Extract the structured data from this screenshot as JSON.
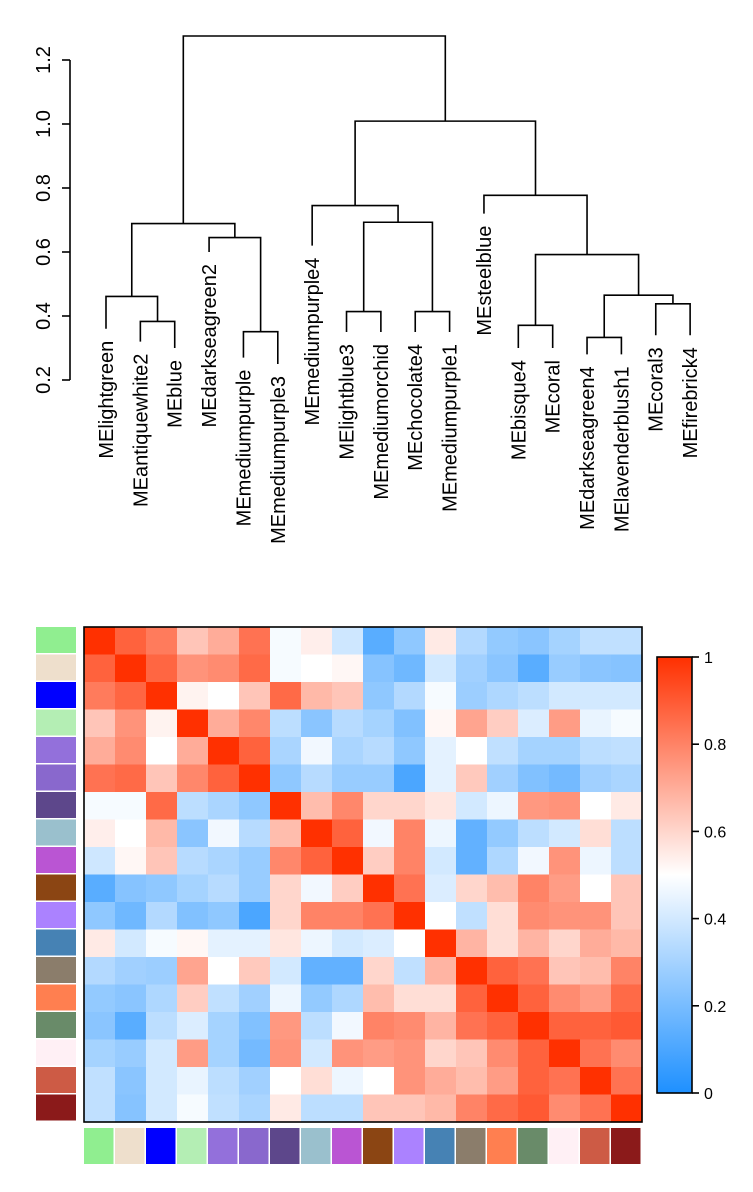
{
  "chart_data": [
    {
      "type": "dendrogram",
      "ylim": [
        0.2,
        1.3
      ],
      "yticks": [
        "0.2",
        "0.4",
        "0.6",
        "0.8",
        "1.0",
        "1.2"
      ],
      "ytick_values": [
        0.2,
        0.4,
        0.6,
        0.8,
        1.0,
        1.2
      ],
      "leaves": [
        "MElightgreen",
        "MEantiquewhite2",
        "MEblue",
        "MEdarkseagreen2",
        "MEmediumpurple",
        "MEmediumpurple3",
        "MEmediumpurple4",
        "MElightblue3",
        "MEmediumorchid",
        "MEchocolate4",
        "MEmediumpurple1",
        "MEsteelblue",
        "MEbisque4",
        "MEcoral",
        "MEdarkseagreen4",
        "MElavenderblush1",
        "MEcoral3",
        "MEfirebrick4"
      ],
      "leaf_heights": [
        0.36,
        0.32,
        0.3,
        0.6,
        0.27,
        0.25,
        0.62,
        0.35,
        0.35,
        0.35,
        0.35,
        0.72,
        0.3,
        0.3,
        0.28,
        0.28,
        0.34,
        0.34
      ],
      "merges": [
        [
          -2,
          -3,
          0.383
        ],
        [
          -1,
          1,
          0.461
        ],
        [
          -5,
          -6,
          0.351
        ],
        [
          -4,
          3,
          0.645
        ],
        [
          2,
          4,
          0.689
        ],
        [
          -8,
          -9,
          0.414
        ],
        [
          -10,
          -11,
          0.414
        ],
        [
          6,
          7,
          0.693
        ],
        [
          -7,
          8,
          0.745
        ],
        [
          -13,
          -14,
          0.371
        ],
        [
          -15,
          -16,
          0.333
        ],
        [
          -17,
          -18,
          0.438
        ],
        [
          11,
          12,
          0.465
        ],
        [
          10,
          13,
          0.592
        ],
        [
          -12,
          14,
          0.777
        ],
        [
          9,
          15,
          1.009
        ],
        [
          5,
          16,
          1.275
        ]
      ]
    },
    {
      "type": "heatmap",
      "colors": [
        "#90ee90",
        "#eedfcc",
        "#0000ff",
        "#b4eeb4",
        "#9370db",
        "#8968cd",
        "#5d478b",
        "#9ac0cd",
        "#ba55d3",
        "#8b4513",
        "#ab82ff",
        "#4682b4",
        "#8b7d6b",
        "#ff7f50",
        "#698b69",
        "#fff0f5",
        "#cd5b45",
        "#8b1a1a"
      ],
      "matrix": [
        [
          1.0,
          0.88,
          0.82,
          0.64,
          0.7,
          0.84,
          0.48,
          0.54,
          0.39,
          0.13,
          0.25,
          0.55,
          0.33,
          0.26,
          0.24,
          0.3,
          0.36,
          0.36
        ],
        [
          0.88,
          1.0,
          0.87,
          0.76,
          0.78,
          0.86,
          0.48,
          0.5,
          0.52,
          0.23,
          0.18,
          0.4,
          0.29,
          0.24,
          0.13,
          0.27,
          0.24,
          0.23
        ],
        [
          0.82,
          0.87,
          1.0,
          0.53,
          0.5,
          0.64,
          0.86,
          0.67,
          0.64,
          0.25,
          0.33,
          0.48,
          0.28,
          0.32,
          0.35,
          0.4,
          0.4,
          0.4
        ],
        [
          0.64,
          0.76,
          0.53,
          1.0,
          0.7,
          0.79,
          0.35,
          0.24,
          0.34,
          0.3,
          0.22,
          0.52,
          0.72,
          0.62,
          0.42,
          0.74,
          0.45,
          0.48
        ],
        [
          0.7,
          0.78,
          0.5,
          0.7,
          1.0,
          0.88,
          0.31,
          0.47,
          0.31,
          0.34,
          0.25,
          0.44,
          0.5,
          0.36,
          0.3,
          0.3,
          0.35,
          0.36
        ],
        [
          0.84,
          0.86,
          0.64,
          0.79,
          0.88,
          1.0,
          0.25,
          0.34,
          0.27,
          0.27,
          0.1,
          0.44,
          0.63,
          0.29,
          0.22,
          0.19,
          0.29,
          0.31
        ],
        [
          0.48,
          0.48,
          0.86,
          0.35,
          0.31,
          0.25,
          1.0,
          0.66,
          0.79,
          0.6,
          0.6,
          0.56,
          0.4,
          0.46,
          0.75,
          0.76,
          0.5,
          0.55
        ],
        [
          0.54,
          0.5,
          0.67,
          0.24,
          0.47,
          0.34,
          0.66,
          1.0,
          0.88,
          0.47,
          0.8,
          0.46,
          0.15,
          0.26,
          0.35,
          0.4,
          0.58,
          0.35
        ],
        [
          0.39,
          0.52,
          0.64,
          0.34,
          0.31,
          0.27,
          0.79,
          0.88,
          1.0,
          0.62,
          0.8,
          0.4,
          0.15,
          0.32,
          0.47,
          0.76,
          0.46,
          0.35
        ],
        [
          0.13,
          0.23,
          0.25,
          0.3,
          0.34,
          0.27,
          0.6,
          0.47,
          0.62,
          1.0,
          0.84,
          0.42,
          0.6,
          0.66,
          0.8,
          0.74,
          0.5,
          0.64
        ],
        [
          0.25,
          0.18,
          0.33,
          0.22,
          0.25,
          0.1,
          0.6,
          0.8,
          0.8,
          0.84,
          1.0,
          0.5,
          0.36,
          0.58,
          0.78,
          0.76,
          0.76,
          0.64
        ],
        [
          0.55,
          0.4,
          0.48,
          0.52,
          0.44,
          0.44,
          0.56,
          0.46,
          0.4,
          0.42,
          0.5,
          1.0,
          0.68,
          0.58,
          0.68,
          0.6,
          0.7,
          0.67
        ],
        [
          0.33,
          0.29,
          0.28,
          0.72,
          0.5,
          0.63,
          0.4,
          0.15,
          0.15,
          0.6,
          0.36,
          0.68,
          1.0,
          0.88,
          0.84,
          0.64,
          0.66,
          0.8
        ],
        [
          0.26,
          0.24,
          0.32,
          0.62,
          0.36,
          0.29,
          0.46,
          0.26,
          0.32,
          0.66,
          0.58,
          0.58,
          0.88,
          1.0,
          0.88,
          0.78,
          0.74,
          0.86
        ],
        [
          0.24,
          0.13,
          0.35,
          0.42,
          0.3,
          0.22,
          0.75,
          0.35,
          0.47,
          0.8,
          0.78,
          0.68,
          0.84,
          0.88,
          1.0,
          0.88,
          0.88,
          0.9
        ],
        [
          0.3,
          0.27,
          0.4,
          0.74,
          0.3,
          0.19,
          0.76,
          0.4,
          0.76,
          0.74,
          0.76,
          0.6,
          0.64,
          0.78,
          0.88,
          1.0,
          0.84,
          0.78
        ],
        [
          0.36,
          0.24,
          0.4,
          0.45,
          0.35,
          0.29,
          0.5,
          0.58,
          0.46,
          0.5,
          0.76,
          0.7,
          0.66,
          0.74,
          0.88,
          0.84,
          1.0,
          0.84
        ],
        [
          0.36,
          0.23,
          0.4,
          0.48,
          0.36,
          0.31,
          0.55,
          0.35,
          0.35,
          0.64,
          0.64,
          0.67,
          0.8,
          0.86,
          0.9,
          0.78,
          0.84,
          1.0
        ]
      ],
      "color_scale": {
        "min": 0,
        "max": 1,
        "stops": [
          "#1e90ff",
          "#ffffff",
          "#ff3000"
        ],
        "ticks": [
          "0",
          "0.2",
          "0.4",
          "0.6",
          "0.8",
          "1"
        ],
        "tick_values": [
          0,
          0.2,
          0.4,
          0.6,
          0.8,
          1
        ]
      }
    }
  ]
}
